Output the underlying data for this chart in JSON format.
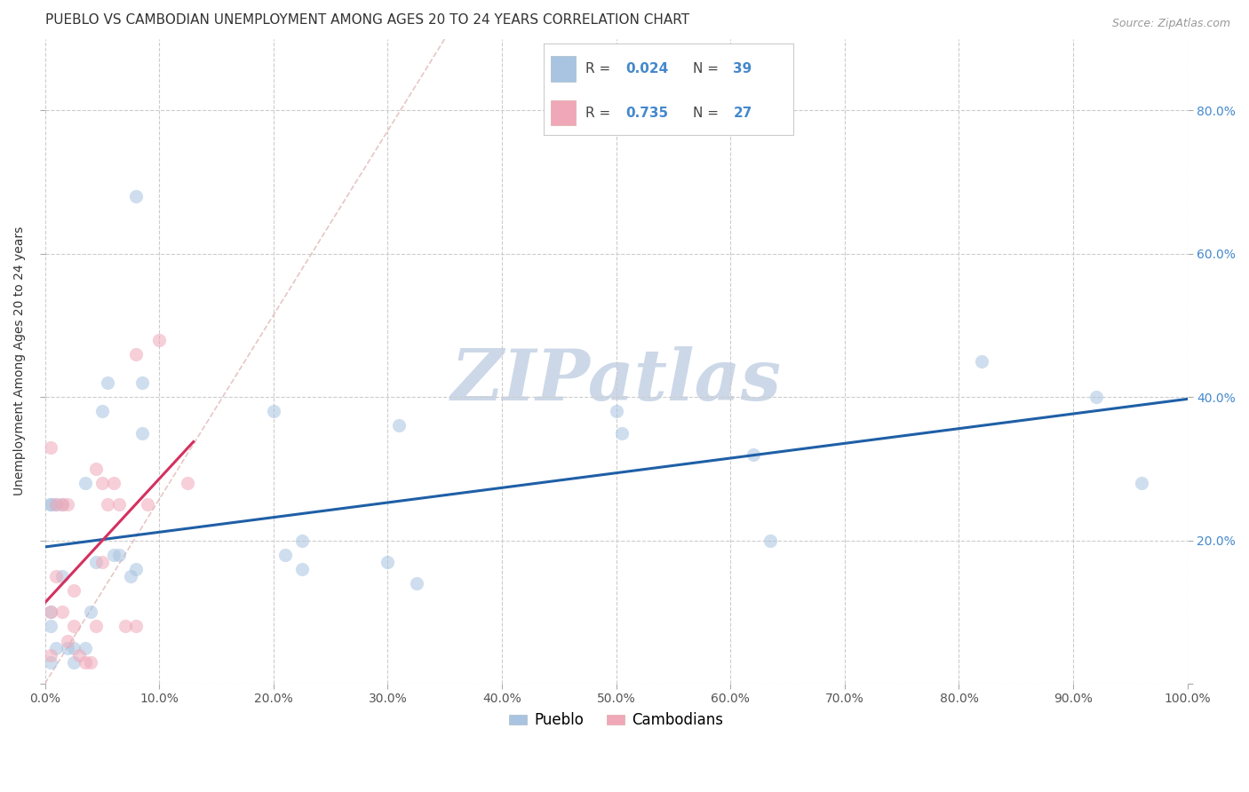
{
  "title": "PUEBLO VS CAMBODIAN UNEMPLOYMENT AMONG AGES 20 TO 24 YEARS CORRELATION CHART",
  "source": "Source: ZipAtlas.com",
  "ylabel": "Unemployment Among Ages 20 to 24 years",
  "pueblo_R": 0.024,
  "pueblo_N": 39,
  "cambodian_R": 0.735,
  "cambodian_N": 27,
  "pueblo_color": "#a8c4e0",
  "pueblo_line_color": "#1f5fa6",
  "cambodian_color": "#f0a8b8",
  "cambodian_line_color": "#d43060",
  "diag_color": "#e0b8b8",
  "watermark": "ZIPatlas",
  "watermark_color": "#ccd8e8",
  "pueblo_points_x": [
    0.5,
    0.5,
    0.5,
    0.5,
    0.5,
    1.0,
    1.0,
    1.5,
    1.5,
    2.0,
    2.5,
    2.5,
    3.5,
    3.5,
    4.0,
    4.5,
    5.0,
    5.5,
    6.0,
    6.5,
    7.5,
    8.0,
    8.0,
    8.5,
    8.5,
    20.0,
    21.0,
    22.5,
    22.5,
    30.0,
    31.0,
    32.5,
    50.0,
    50.5,
    62.0,
    63.5,
    82.0,
    92.0,
    96.0
  ],
  "pueblo_points_y": [
    25.0,
    25.0,
    10.0,
    8.0,
    3.0,
    25.0,
    5.0,
    15.0,
    25.0,
    5.0,
    5.0,
    3.0,
    5.0,
    28.0,
    10.0,
    17.0,
    38.0,
    42.0,
    18.0,
    18.0,
    15.0,
    16.0,
    68.0,
    42.0,
    35.0,
    38.0,
    18.0,
    16.0,
    20.0,
    17.0,
    36.0,
    14.0,
    38.0,
    35.0,
    32.0,
    20.0,
    45.0,
    40.0,
    28.0
  ],
  "cambodian_points_x": [
    0.5,
    0.5,
    0.5,
    1.0,
    1.0,
    1.5,
    1.5,
    2.0,
    2.0,
    2.5,
    2.5,
    3.0,
    3.5,
    4.0,
    4.5,
    4.5,
    5.0,
    5.0,
    5.5,
    6.0,
    6.5,
    7.0,
    8.0,
    8.0,
    9.0,
    10.0,
    12.5
  ],
  "cambodian_points_y": [
    33.0,
    10.0,
    4.0,
    25.0,
    15.0,
    25.0,
    10.0,
    6.0,
    25.0,
    13.0,
    8.0,
    4.0,
    3.0,
    3.0,
    30.0,
    8.0,
    17.0,
    28.0,
    25.0,
    28.0,
    25.0,
    8.0,
    8.0,
    46.0,
    25.0,
    48.0,
    28.0
  ],
  "xlim": [
    0.0,
    100.0
  ],
  "ylim": [
    0.0,
    90.0
  ],
  "xticks": [
    0.0,
    10.0,
    20.0,
    30.0,
    40.0,
    50.0,
    60.0,
    70.0,
    80.0,
    90.0,
    100.0
  ],
  "yticks": [
    0.0,
    20.0,
    40.0,
    60.0,
    80.0
  ],
  "xtick_labels": [
    "0.0%",
    "10.0%",
    "20.0%",
    "30.0%",
    "40.0%",
    "50.0%",
    "60.0%",
    "70.0%",
    "80.0%",
    "90.0%",
    "100.0%"
  ],
  "ytick_labels": [
    "",
    "20.0%",
    "40.0%",
    "60.0%",
    "80.0%"
  ],
  "title_fontsize": 11,
  "label_fontsize": 10,
  "tick_fontsize": 10,
  "legend_fontsize": 12,
  "marker_size": 120,
  "marker_alpha": 0.55
}
